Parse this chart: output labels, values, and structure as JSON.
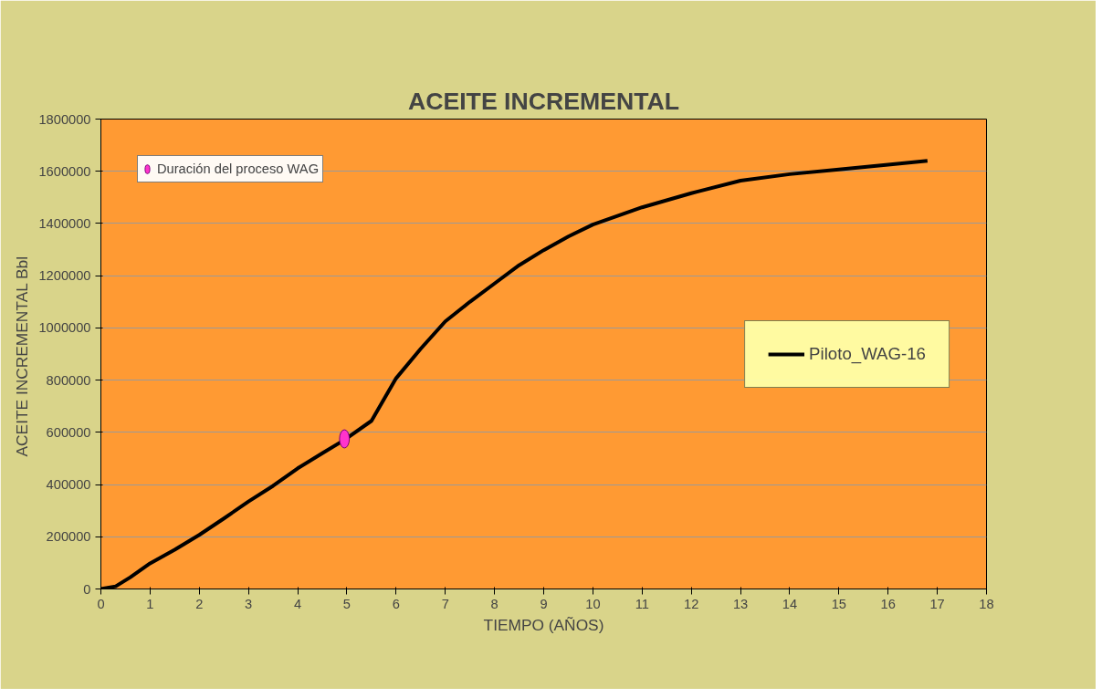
{
  "chart_data": {
    "type": "line",
    "title": "ACEITE INCREMENTAL",
    "xlabel": "TIEMPO (AÑOS)",
    "ylabel": "ACEITE INCREMENTAL  Bbl",
    "x": [
      0,
      0.3,
      0.6,
      1,
      1.5,
      2,
      2.5,
      3,
      3.5,
      4,
      4.5,
      4.95,
      5.5,
      6,
      6.5,
      7,
      7.5,
      8,
      8.5,
      9,
      9.5,
      10,
      11,
      12,
      13,
      14,
      15,
      16,
      16.8
    ],
    "series": [
      {
        "name": "Piloto_WAG-16",
        "color": "#000000",
        "values": [
          0,
          10000,
          45000,
          98000,
          150000,
          207000,
          270000,
          335000,
          395000,
          462000,
          520000,
          571000,
          644000,
          807000,
          920000,
          1025000,
          1100000,
          1170000,
          1240000,
          1298000,
          1350000,
          1396000,
          1462000,
          1516000,
          1564000,
          1589000,
          1607000,
          1625000,
          1640000
        ]
      },
      {
        "name": "Duración del proceso WAG",
        "type": "scatter",
        "color": "#ff33cc",
        "x": [
          4.95
        ],
        "values": [
          575000
        ]
      }
    ],
    "xlim": [
      0,
      18
    ],
    "xticks": [
      0,
      1,
      2,
      3,
      4,
      5,
      6,
      7,
      8,
      9,
      10,
      11,
      12,
      13,
      14,
      15,
      16,
      17,
      18
    ],
    "ylim": [
      0,
      1800000
    ],
    "yticks": [
      0,
      200000,
      400000,
      600000,
      800000,
      1000000,
      1200000,
      1400000,
      1600000,
      1800000
    ],
    "grid": "y",
    "legend": "right",
    "line_style": "solid"
  }
}
